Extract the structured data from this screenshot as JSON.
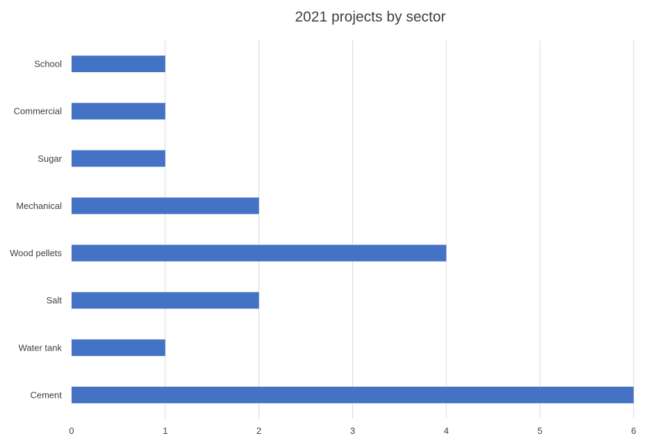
{
  "chart_data": {
    "type": "bar",
    "orientation": "horizontal",
    "title": "2021 projects by sector",
    "categories": [
      "School",
      "Commercial",
      "Sugar",
      "Mechanical",
      "Wood pellets",
      "Salt",
      "Water tank",
      "Cement"
    ],
    "values": [
      1,
      1,
      1,
      2,
      4,
      2,
      1,
      6
    ],
    "xlim": [
      0,
      6
    ],
    "xticks": [
      0,
      1,
      2,
      3,
      4,
      5,
      6
    ],
    "xlabel": "",
    "ylabel": "",
    "grid": "vertical",
    "legend": "none",
    "bar_color": "#4472c4",
    "grid_color": "#d9d9d9"
  }
}
